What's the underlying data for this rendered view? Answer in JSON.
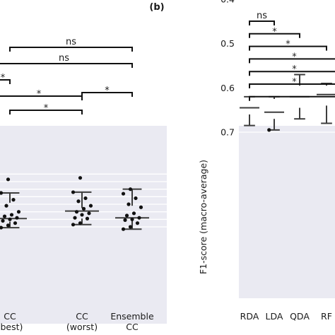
{
  "chart_data": [
    {
      "type": "box",
      "panel": "",
      "categories": [
        "CC\n(best)",
        "CC\n(worst)",
        "Ensemble\nCC"
      ],
      "ylabel": "",
      "ylim": [
        0.36,
        0.72
      ],
      "grid": true,
      "boxes": [
        {
          "category": "CC (best)",
          "color": "#e1915c",
          "whisker_low": 0.475,
          "q1": 0.54,
          "median": 0.645,
          "q3": 0.665,
          "whisker_high": 0.705,
          "points": [
            0.705,
            0.69,
            0.675,
            0.66,
            0.65,
            0.64,
            0.63,
            0.62,
            0.6,
            0.56,
            0.52,
            0.475,
            0.385
          ]
        },
        {
          "category": "CC (worst)",
          "color": "#8da0c8",
          "whisker_low": 0.47,
          "q1": 0.575,
          "median": 0.595,
          "q3": 0.645,
          "whisker_high": 0.685,
          "points": [
            0.685,
            0.675,
            0.645,
            0.64,
            0.62,
            0.61,
            0.6,
            0.58,
            0.56,
            0.53,
            0.51,
            0.47,
            0.375
          ]
        },
        {
          "category": "Ensemble CC",
          "color": "#e282bc",
          "whisker_low": 0.45,
          "q1": 0.56,
          "median": 0.64,
          "q3": 0.66,
          "whisker_high": 0.715,
          "points": [
            0.715,
            0.7,
            0.675,
            0.655,
            0.65,
            0.64,
            0.625,
            0.61,
            0.57,
            0.55,
            0.51,
            0.48,
            0.45
          ]
        }
      ],
      "significance": [
        {
          "from": 0,
          "to": 2,
          "label": "ns"
        },
        {
          "from": -1,
          "to": 2,
          "label": "ns"
        },
        {
          "from": -1,
          "to": 0,
          "label": "*"
        },
        {
          "from": -1,
          "to": 1,
          "label": "*"
        },
        {
          "from": 1,
          "to": 2,
          "label": "*"
        },
        {
          "from": 0,
          "to": 1,
          "label": "*"
        }
      ]
    },
    {
      "type": "box",
      "panel": "(b)",
      "categories": [
        "RDA",
        "LDA",
        "QDA",
        "RF"
      ],
      "ylabel": "F1-score (macro-average)",
      "ylim": [
        0.36,
        0.72
      ],
      "yticks": [
        0.4,
        0.5,
        0.6,
        0.7
      ],
      "ytick_labels": [
        "0.4",
        "0.5",
        "0.6",
        "0.7"
      ],
      "grid": true,
      "boxes": [
        {
          "category": "RDA",
          "color": "#4e79b1",
          "whisker_low": 0.62,
          "q1": 0.625,
          "median": 0.645,
          "q3": 0.66,
          "whisker_high": 0.685,
          "points": [
            0.685,
            0.675,
            0.665,
            0.66,
            0.655,
            0.645,
            0.64,
            0.635,
            0.63,
            0.625,
            0.62,
            0.555
          ]
        },
        {
          "category": "LDA",
          "color": "#dd8452",
          "whisker_low": 0.62,
          "q1": 0.625,
          "median": 0.655,
          "q3": 0.67,
          "whisker_high": 0.695,
          "points": [
            0.695,
            0.685,
            0.675,
            0.665,
            0.66,
            0.655,
            0.645,
            0.635,
            0.63,
            0.625,
            0.62,
            0.55
          ]
        },
        {
          "category": "QDA",
          "color": "#55a868",
          "whisker_low": 0.57,
          "q1": 0.595,
          "median": 0.62,
          "q3": 0.645,
          "whisker_high": 0.67,
          "points": [
            0.67,
            0.66,
            0.655,
            0.645,
            0.64,
            0.625,
            0.62,
            0.61,
            0.6,
            0.57,
            0.535,
            0.395
          ]
        },
        {
          "category": "RF",
          "color": "#c44e52",
          "whisker_low": 0.59,
          "q1": 0.595,
          "median": 0.615,
          "q3": 0.64,
          "whisker_high": 0.68,
          "points": [
            0.68,
            0.65,
            0.635,
            0.625,
            0.62,
            0.61,
            0.6,
            0.595,
            0.59,
            0.5
          ]
        }
      ],
      "significance": [
        {
          "from": 0,
          "to": 1,
          "label": "ns"
        },
        {
          "from": 0,
          "to": 2,
          "label": "*"
        },
        {
          "from": 0,
          "to": 3,
          "label": "*"
        },
        {
          "from": 0,
          "to": 4,
          "label": "*"
        },
        {
          "from": 0,
          "to": 5,
          "label": "*"
        },
        {
          "from": 0,
          "to": 6,
          "label": "*"
        },
        {
          "from": 0,
          "to": 7,
          "label": ""
        }
      ]
    }
  ]
}
